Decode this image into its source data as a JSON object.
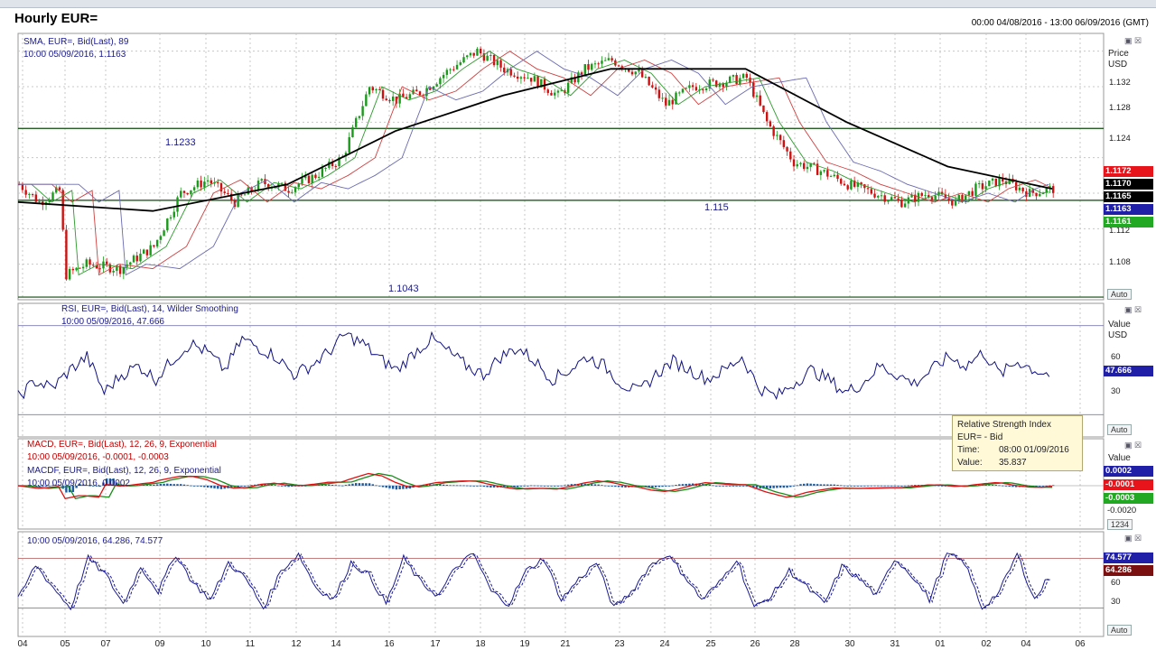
{
  "header": {
    "title": "Hourly EUR=",
    "date_range": "00:00 04/08/2016 - 13:00 06/09/2016 (GMT)"
  },
  "chart_data": [
    {
      "type": "candlestick",
      "panel": "price",
      "label_line1": "SMA, EUR=, Bid(Last), 89",
      "label_line2": "10:00 05/09/2016, 1.1163",
      "axis_head": [
        "Price",
        "USD"
      ],
      "y_ticks": [
        "1.132",
        "1.128",
        "1.124",
        "1.112",
        "1.108"
      ],
      "ylim": [
        1.104,
        1.134
      ],
      "horizontal_levels": [
        {
          "label": "1.1233",
          "value": 1.1233
        },
        {
          "label": "1.115",
          "value": 1.1152
        },
        {
          "label": "1.1043",
          "value": 1.1043
        }
      ],
      "price_boxes": [
        {
          "label": "1.1172",
          "value": 1.1172,
          "color": "#e8141c"
        },
        {
          "label": "1.1170",
          "value": 1.117,
          "color": "#000000"
        },
        {
          "label": "1.1165",
          "value": 1.1165,
          "color": "#000000"
        },
        {
          "label": "1.1163",
          "value": 1.1163,
          "color": "#1f1fa8"
        },
        {
          "label": "1.1161",
          "value": 1.1161,
          "color": "#22a822"
        }
      ],
      "close_path": [
        [
          0,
          1.117
        ],
        [
          6,
          1.115
        ],
        [
          12,
          1.1163
        ],
        [
          14,
          1.1068
        ],
        [
          20,
          1.108
        ],
        [
          30,
          1.1075
        ],
        [
          40,
          1.11
        ],
        [
          48,
          1.116
        ],
        [
          56,
          1.1175
        ],
        [
          64,
          1.115
        ],
        [
          72,
          1.1172
        ],
        [
          80,
          1.1165
        ],
        [
          88,
          1.118
        ],
        [
          96,
          1.12
        ],
        [
          104,
          1.128
        ],
        [
          112,
          1.1265
        ],
        [
          120,
          1.1275
        ],
        [
          128,
          1.13
        ],
        [
          136,
          1.132
        ],
        [
          144,
          1.13
        ],
        [
          152,
          1.129
        ],
        [
          160,
          1.127
        ],
        [
          168,
          1.13
        ],
        [
          176,
          1.131
        ],
        [
          184,
          1.1295
        ],
        [
          192,
          1.126
        ],
        [
          200,
          1.128
        ],
        [
          208,
          1.1285
        ],
        [
          216,
          1.129
        ],
        [
          222,
          1.124
        ],
        [
          230,
          1.1195
        ],
        [
          238,
          1.1185
        ],
        [
          246,
          1.117
        ],
        [
          254,
          1.116
        ],
        [
          262,
          1.115
        ],
        [
          270,
          1.116
        ],
        [
          278,
          1.115
        ],
        [
          284,
          1.1165
        ],
        [
          292,
          1.1175
        ],
        [
          300,
          1.116
        ],
        [
          307,
          1.1165
        ]
      ],
      "sma_slow_path": [
        [
          0,
          1.115
        ],
        [
          40,
          1.114
        ],
        [
          80,
          1.117
        ],
        [
          112,
          1.123
        ],
        [
          144,
          1.127
        ],
        [
          176,
          1.13
        ],
        [
          216,
          1.13
        ],
        [
          246,
          1.124
        ],
        [
          276,
          1.119
        ],
        [
          307,
          1.1165
        ]
      ]
    },
    {
      "type": "line",
      "panel": "rsi",
      "label_line1": "RSI, EUR=, Bid(Last), 14, Wilder Smoothing",
      "label_line2": "10:00 05/09/2016, 47.666",
      "axis_head": [
        "Value",
        "USD"
      ],
      "y_ticks": [
        "60",
        "30"
      ],
      "ylim": [
        20,
        80
      ],
      "current_value": "47.666",
      "values": [
        38,
        45,
        42,
        50,
        56,
        40,
        48,
        52,
        46,
        55,
        62,
        58,
        50,
        64,
        60,
        56,
        48,
        52,
        58,
        66,
        62,
        55,
        50,
        58,
        64,
        58,
        52,
        48,
        56,
        60,
        54,
        46,
        50,
        56,
        52,
        44,
        40,
        48,
        54,
        50,
        46,
        50,
        56,
        42,
        38,
        44,
        50,
        46,
        40,
        44,
        52,
        48,
        44,
        50,
        56,
        52,
        58,
        48,
        54,
        50,
        47.666
      ]
    },
    {
      "type": "line",
      "panel": "macd",
      "label_line1": "MACD, EUR=, Bid(Last), 12, 26, 9, Exponential",
      "label_line2": "10:00 05/09/2016, -0.0001, -0.0003",
      "label_line3": "MACDF, EUR=, Bid(Last), 12, 26, 9, Exponential",
      "label_line4": "10:00 05/09/2016, 0.0002",
      "axis_head": [
        "Value"
      ],
      "y_ticks": [
        "-0.0020"
      ],
      "value_boxes": [
        {
          "label": "0.0002",
          "color": "#1f1fa8"
        },
        {
          "label": "-0.0001",
          "color": "#e8141c"
        },
        {
          "label": "-0.0003",
          "color": "#22a822"
        }
      ],
      "extra_label": "1234"
    },
    {
      "type": "line",
      "panel": "stochastic",
      "label_line1": "10:00 05/09/2016, 64.286, 74.577",
      "y_ticks": [
        "60",
        "30"
      ],
      "ylim": [
        0,
        100
      ],
      "value_boxes": [
        {
          "label": "74.577",
          "color": "#1f1fa8"
        },
        {
          "label": "64.286",
          "color": "#7a1010"
        }
      ],
      "values": [
        30,
        72,
        45,
        20,
        80,
        60,
        25,
        70,
        40,
        85,
        50,
        30,
        75,
        55,
        20,
        65,
        85,
        45,
        30,
        75,
        60,
        25,
        80,
        50,
        35,
        70,
        85,
        40,
        25,
        65,
        80,
        30,
        55,
        75,
        20,
        40,
        70,
        85,
        60,
        30,
        50,
        80,
        20,
        35,
        65,
        45,
        25,
        70,
        55,
        35,
        80,
        60,
        30,
        85,
        75,
        20,
        40,
        85,
        30,
        64.286
      ]
    }
  ],
  "x_axis": {
    "labels": [
      "04",
      "05",
      "07",
      "09",
      "10",
      "11",
      "12",
      "14",
      "16",
      "17",
      "18",
      "19",
      "21",
      "23",
      "24",
      "25",
      "26",
      "28",
      "30",
      "31",
      "01",
      "02",
      "04",
      "06"
    ]
  },
  "tooltip": {
    "title": "Relative Strength Index",
    "subtitle": "EUR= - Bid",
    "time_label": "Time:",
    "time_value": "08:00 01/09/2016",
    "value_label": "Value:",
    "value_value": "35.837"
  },
  "controls": {
    "auto_label": "Auto"
  },
  "colors": {
    "up_candle": "#1a9a1a",
    "down_candle": "#d01010",
    "sma_fast": "#2c9a2c",
    "sma_mid": "#d04040",
    "sma_third": "#6a6ab0",
    "sma_slow": "#000000",
    "rsi_line": "#101080",
    "macd_hist": "#1c5aa0"
  }
}
